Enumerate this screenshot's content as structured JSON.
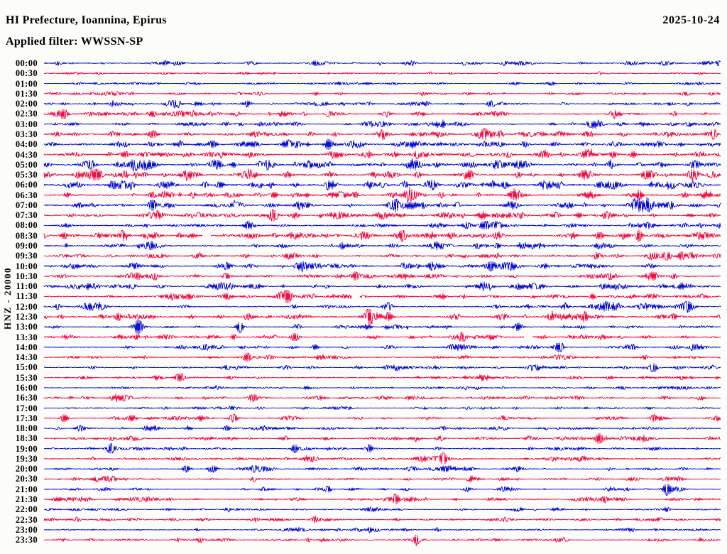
{
  "header": {
    "title": "HI Prefecture, Ioannina, Epirus",
    "date": "2025-10-24",
    "filter_label": "Applied filter: WWSSN-SP"
  },
  "axis": {
    "channel_label": "HNZ - 20000"
  },
  "colors": {
    "trace_blue": "#0D12CE",
    "trace_red": "#F01048",
    "text": "#000000",
    "background": "#FCFCFA"
  },
  "chart_data": {
    "type": "line",
    "subtype": "helicorder-seismogram",
    "station_channel": "HNZ",
    "scale": 20000,
    "date": "2025-10-24",
    "filter": "WWSSN-SP",
    "row_interval_minutes": 30,
    "rows_start": "00:00",
    "rows_end": "23:30",
    "legend": "alternating blue/red half-hour traces, amplitudes in px, events as [position-fraction, peak-px, width-px]",
    "rows": [
      {
        "t": "00:00",
        "c": "b",
        "a": 1.0,
        "e": [
          [
            0.02,
            3,
            4
          ],
          [
            0.18,
            3,
            5
          ],
          [
            0.4,
            3.5,
            6
          ],
          [
            0.62,
            2.5,
            4
          ],
          [
            0.86,
            2,
            3
          ]
        ]
      },
      {
        "t": "00:30",
        "c": "r",
        "a": 0.45,
        "e": [
          [
            0.3,
            1.6,
            3
          ],
          [
            0.34,
            1.8,
            3
          ],
          [
            0.42,
            1.5,
            2
          ],
          [
            0.57,
            2.8,
            3
          ],
          [
            0.6,
            1.5,
            3
          ],
          [
            0.82,
            2,
            4
          ]
        ]
      },
      {
        "t": "01:00",
        "c": "b",
        "a": 0.7,
        "e": [
          [
            0.21,
            2,
            4
          ],
          [
            0.3,
            1.4,
            3
          ],
          [
            0.52,
            1.4,
            3
          ],
          [
            0.75,
            1.4,
            3
          ],
          [
            0.97,
            3,
            5
          ]
        ]
      },
      {
        "t": "01:30",
        "c": "r",
        "a": 0.8,
        "e": [
          [
            0.02,
            2,
            4
          ],
          [
            0.07,
            2,
            3
          ],
          [
            0.13,
            1.6,
            3
          ],
          [
            0.4,
            2.6,
            5
          ],
          [
            0.68,
            1.6,
            3
          ],
          [
            0.95,
            2.6,
            4
          ]
        ]
      },
      {
        "t": "02:00",
        "c": "b",
        "a": 0.9,
        "e": [
          [
            0.03,
            2.6,
            4
          ],
          [
            0.1,
            2,
            3
          ],
          [
            0.3,
            4,
            5
          ],
          [
            0.44,
            2,
            4
          ],
          [
            0.66,
            4.5,
            7
          ],
          [
            0.95,
            2,
            4
          ]
        ]
      },
      {
        "t": "02:30",
        "c": "r",
        "a": 1.2,
        "e": [
          [
            0.03,
            4,
            5
          ],
          [
            0.16,
            4.5,
            7
          ],
          [
            0.22,
            3.2,
            5
          ],
          [
            0.42,
            3.2,
            5
          ],
          [
            0.55,
            2,
            4
          ],
          [
            0.93,
            2.6,
            5
          ]
        ]
      },
      {
        "t": "03:00",
        "c": "b",
        "a": 1.1,
        "e": [
          [
            0.29,
            2.6,
            5
          ],
          [
            0.5,
            4,
            5
          ],
          [
            0.59,
            3.2,
            4
          ],
          [
            0.78,
            2,
            4
          ]
        ]
      },
      {
        "t": "03:30",
        "c": "r",
        "a": 1.5,
        "e": [
          [
            0.1,
            3.2,
            6
          ],
          [
            0.16,
            4.5,
            8
          ],
          [
            0.33,
            2.6,
            5
          ],
          [
            0.43,
            3.2,
            5
          ],
          [
            0.65,
            4.5,
            6
          ],
          [
            0.72,
            2.6,
            4
          ],
          [
            0.99,
            4,
            5
          ]
        ]
      },
      {
        "t": "04:00",
        "c": "b",
        "a": 1.5,
        "e": [
          [
            0.12,
            3.2,
            5
          ],
          [
            0.25,
            4.5,
            6
          ],
          [
            0.42,
            4.5,
            6
          ],
          [
            0.55,
            2.6,
            4
          ],
          [
            0.71,
            4,
            6
          ],
          [
            0.97,
            2.6,
            4
          ]
        ]
      },
      {
        "t": "04:30",
        "c": "r",
        "a": 1.5,
        "e": [
          [
            0.12,
            4.5,
            7
          ],
          [
            0.3,
            2.6,
            4
          ],
          [
            0.55,
            4,
            5
          ],
          [
            0.84,
            4.5,
            6
          ],
          [
            0.87,
            4.5,
            5
          ]
        ]
      },
      {
        "t": "05:00",
        "c": "b",
        "a": 1.6,
        "e": [
          [
            0.07,
            4.5,
            6
          ],
          [
            0.16,
            4,
            8
          ],
          [
            0.28,
            4,
            5
          ],
          [
            0.33,
            4,
            5
          ],
          [
            0.5,
            2.6,
            4
          ],
          [
            0.96,
            5,
            8
          ]
        ]
      },
      {
        "t": "05:30",
        "c": "r",
        "a": 2.2,
        "e": [
          [
            0.05,
            4,
            6
          ],
          [
            0.08,
            6,
            7
          ],
          [
            0.36,
            4,
            6
          ],
          [
            0.63,
            4,
            5
          ],
          [
            0.7,
            4,
            5
          ],
          [
            0.89,
            6,
            8
          ]
        ]
      },
      {
        "t": "06:00",
        "c": "b",
        "a": 2.2,
        "e": [
          [
            0.1,
            4,
            6
          ],
          [
            0.26,
            4.5,
            6
          ],
          [
            0.42,
            4,
            6
          ],
          [
            0.68,
            4.5,
            7
          ],
          [
            0.82,
            4,
            6
          ]
        ]
      },
      {
        "t": "06:30",
        "c": "r",
        "a": 1.8,
        "e": [
          [
            0.16,
            4.5,
            6
          ],
          [
            0.22,
            4,
            5
          ],
          [
            0.34,
            4.5,
            6
          ],
          [
            0.46,
            4,
            5
          ],
          [
            0.88,
            4.5,
            6
          ]
        ]
      },
      {
        "t": "07:00",
        "c": "b",
        "a": 1.7,
        "e": [
          [
            0.16,
            6,
            7
          ],
          [
            0.39,
            3.2,
            5
          ],
          [
            0.52,
            4,
            5
          ],
          [
            0.56,
            3.2,
            5
          ],
          [
            0.61,
            4,
            5
          ]
        ]
      },
      {
        "t": "07:30",
        "c": "r",
        "a": 1.5,
        "e": [
          [
            0.34,
            6,
            6
          ],
          [
            0.79,
            4,
            6
          ],
          [
            0.83,
            4.5,
            6
          ],
          [
            0.9,
            2.6,
            4
          ]
        ]
      },
      {
        "t": "08:00",
        "c": "b",
        "a": 1.5,
        "e": [
          [
            0.3,
            4,
            6
          ],
          [
            0.65,
            5,
            9
          ],
          [
            0.89,
            3.2,
            6
          ]
        ]
      },
      {
        "t": "08:30",
        "c": "r",
        "a": 1.6,
        "e": [
          [
            0.03,
            4.5,
            5
          ],
          [
            0.2,
            3.2,
            5
          ],
          [
            0.34,
            3.2,
            5
          ],
          [
            0.53,
            6,
            6
          ],
          [
            0.82,
            5,
            7
          ],
          [
            0.88,
            6,
            5
          ]
        ],
        "g": [
          [
            0.24,
            0.012
          ]
        ]
      },
      {
        "t": "09:00",
        "c": "b",
        "a": 1.5,
        "e": [
          [
            0.44,
            3.2,
            5
          ],
          [
            0.64,
            4,
            6
          ],
          [
            0.67,
            4,
            5
          ]
        ]
      },
      {
        "t": "09:30",
        "c": "r",
        "a": 1.3,
        "e": [
          [
            0.67,
            3.2,
            5
          ],
          [
            0.92,
            6,
            7
          ],
          [
            0.94,
            4,
            5
          ]
        ]
      },
      {
        "t": "10:00",
        "c": "b",
        "a": 1.3,
        "e": [
          [
            0.27,
            4,
            5
          ],
          [
            0.57,
            4,
            5
          ],
          [
            0.66,
            4.5,
            6
          ],
          [
            0.74,
            3.2,
            4
          ]
        ]
      },
      {
        "t": "10:30",
        "c": "r",
        "a": 1.2,
        "e": [
          [
            0.27,
            4.5,
            6
          ],
          [
            0.46,
            4.5,
            6
          ],
          [
            0.9,
            4,
            5
          ],
          [
            0.93,
            4,
            5
          ]
        ]
      },
      {
        "t": "11:00",
        "c": "b",
        "a": 1.4,
        "e": [
          [
            0.3,
            2.6,
            5
          ],
          [
            0.7,
            3.2,
            5
          ]
        ]
      },
      {
        "t": "11:30",
        "c": "r",
        "a": 1.2,
        "e": [
          [
            0.36,
            6,
            6
          ],
          [
            0.59,
            3.2,
            4
          ],
          [
            0.62,
            3.2,
            4
          ],
          [
            0.81,
            4,
            5
          ],
          [
            0.97,
            2.6,
            4
          ]
        ],
        "g": [
          [
            0.46,
            0.012
          ]
        ]
      },
      {
        "t": "12:00",
        "c": "b",
        "a": 1.4,
        "e": [
          [
            0.02,
            4,
            5
          ],
          [
            0.51,
            3.2,
            5
          ],
          [
            0.77,
            3.2,
            5
          ],
          [
            0.95,
            6,
            9
          ]
        ]
      },
      {
        "t": "12:30",
        "c": "r",
        "a": 1.5,
        "e": [
          [
            0.11,
            4.5,
            6
          ],
          [
            0.48,
            5,
            6
          ],
          [
            0.51,
            5,
            6
          ],
          [
            0.8,
            4,
            5
          ],
          [
            0.93,
            4.5,
            6
          ]
        ]
      },
      {
        "t": "13:00",
        "c": "b",
        "a": 1.2,
        "e": [
          [
            0.14,
            6,
            6
          ],
          [
            0.29,
            4,
            5
          ],
          [
            0.7,
            3.2,
            5
          ]
        ]
      },
      {
        "t": "13:30",
        "c": "r",
        "a": 1.2,
        "e": [
          [
            0.28,
            4,
            5
          ],
          [
            0.37,
            6,
            6
          ],
          [
            0.62,
            3.2,
            5
          ]
        ],
        "g": [
          [
            0.715,
            0.012
          ]
        ]
      },
      {
        "t": "14:00",
        "c": "b",
        "a": 1.1,
        "e": [
          [
            0.4,
            4,
            5
          ],
          [
            0.76,
            6,
            6
          ],
          [
            0.87,
            4,
            5
          ]
        ]
      },
      {
        "t": "14:30",
        "c": "r",
        "a": 0.9,
        "e": [
          [
            0.3,
            6,
            6
          ],
          [
            0.33,
            2.6,
            4
          ]
        ]
      },
      {
        "t": "15:00",
        "c": "b",
        "a": 0.9,
        "e": [
          [
            0.52,
            2,
            4
          ],
          [
            0.9,
            6,
            6
          ]
        ]
      },
      {
        "t": "15:30",
        "c": "r",
        "a": 1.0,
        "e": [
          [
            0.2,
            6,
            7
          ],
          [
            0.6,
            2.6,
            4
          ]
        ]
      },
      {
        "t": "16:00",
        "c": "b",
        "a": 0.8,
        "e": [
          [
            0.35,
            2,
            4
          ],
          [
            0.64,
            2,
            4
          ]
        ]
      },
      {
        "t": "16:30",
        "c": "r",
        "a": 1.0,
        "e": [
          [
            0.31,
            4,
            6
          ],
          [
            0.55,
            2.6,
            4
          ]
        ]
      },
      {
        "t": "17:00",
        "c": "b",
        "a": 0.8,
        "e": [
          [
            0.55,
            2,
            4
          ],
          [
            0.8,
            2,
            4
          ]
        ]
      },
      {
        "t": "17:30",
        "c": "r",
        "a": 1.0,
        "e": [
          [
            0.03,
            6,
            6
          ],
          [
            0.28,
            6,
            7
          ],
          [
            0.9,
            4.5,
            5
          ]
        ]
      },
      {
        "t": "18:00",
        "c": "b",
        "a": 0.9,
        "e": [
          [
            0.27,
            4,
            5
          ],
          [
            0.59,
            3.2,
            5
          ],
          [
            0.76,
            2,
            4
          ]
        ]
      },
      {
        "t": "18:30",
        "c": "r",
        "a": 1.0,
        "e": [
          [
            0.1,
            2.6,
            4
          ],
          [
            0.55,
            2.6,
            4
          ],
          [
            0.82,
            6,
            6
          ]
        ]
      },
      {
        "t": "19:00",
        "c": "b",
        "a": 1.0,
        "e": [
          [
            0.1,
            4.5,
            6
          ],
          [
            0.37,
            4.5,
            6
          ],
          [
            0.48,
            4,
            5
          ]
        ]
      },
      {
        "t": "19:30",
        "c": "r",
        "a": 0.9,
        "e": [
          [
            0.59,
            4,
            6
          ],
          [
            0.75,
            2.6,
            4
          ]
        ]
      },
      {
        "t": "20:00",
        "c": "b",
        "a": 1.0,
        "e": [
          [
            0.21,
            4.5,
            6
          ],
          [
            0.25,
            5,
            6
          ],
          [
            0.31,
            4,
            5
          ]
        ]
      },
      {
        "t": "20:30",
        "c": "r",
        "a": 0.9,
        "e": [
          [
            0.31,
            3.2,
            5
          ],
          [
            0.63,
            3.2,
            5
          ]
        ]
      },
      {
        "t": "21:00",
        "c": "b",
        "a": 1.0,
        "e": [
          [
            0.42,
            4.5,
            5
          ],
          [
            0.92,
            6,
            7
          ]
        ]
      },
      {
        "t": "21:30",
        "c": "r",
        "a": 0.9,
        "e": [
          [
            0.13,
            2.6,
            4
          ],
          [
            0.52,
            6,
            6
          ],
          [
            0.83,
            2.6,
            4
          ]
        ]
      },
      {
        "t": "22:00",
        "c": "b",
        "a": 0.7,
        "e": [
          [
            0.11,
            2,
            4
          ],
          [
            0.27,
            2.6,
            4
          ],
          [
            0.92,
            2.6,
            4
          ]
        ]
      },
      {
        "t": "22:30",
        "c": "r",
        "a": 1.0,
        "e": [
          [
            0.05,
            3.2,
            4
          ],
          [
            0.14,
            2.6,
            4
          ],
          [
            0.4,
            3.2,
            5
          ],
          [
            0.68,
            2.6,
            4
          ],
          [
            0.91,
            2.6,
            4
          ]
        ]
      },
      {
        "t": "23:00",
        "c": "b",
        "a": 0.8,
        "e": [
          [
            0.48,
            3.2,
            5
          ],
          [
            0.58,
            3.2,
            5
          ],
          [
            0.87,
            2,
            4
          ]
        ]
      },
      {
        "t": "23:30",
        "c": "r",
        "a": 0.7,
        "e": [
          [
            0.23,
            2,
            3
          ],
          [
            0.39,
            3.2,
            4
          ],
          [
            0.55,
            8,
            4
          ],
          [
            0.77,
            2.6,
            4
          ],
          [
            0.97,
            2.6,
            4
          ]
        ]
      }
    ]
  }
}
